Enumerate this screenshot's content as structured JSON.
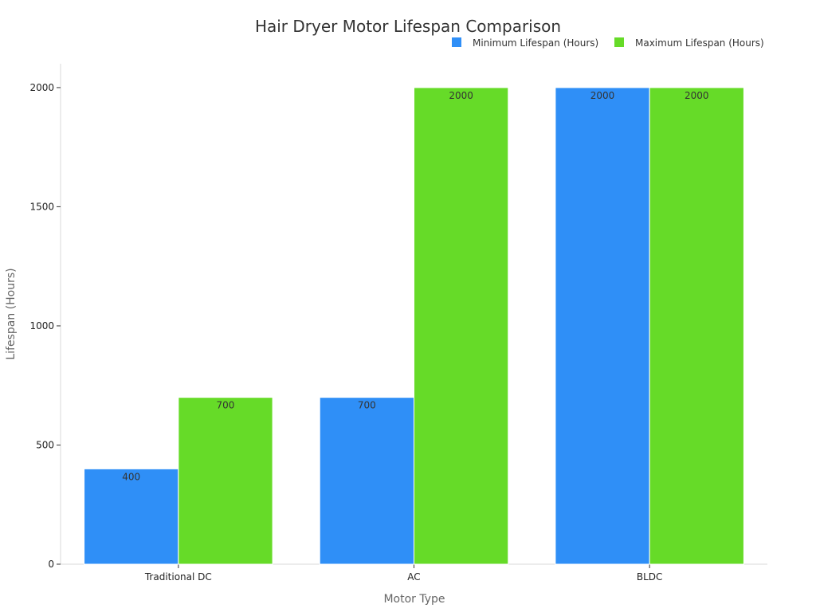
{
  "chart_data": {
    "type": "bar",
    "title": "Hair Dryer Motor Lifespan Comparison",
    "xlabel": "Motor Type",
    "ylabel": "Lifespan (Hours)",
    "categories": [
      "Traditional DC",
      "AC",
      "BLDC"
    ],
    "series": [
      {
        "name": "Minimum Lifespan (Hours)",
        "values": [
          400,
          700,
          2000
        ],
        "color": "#2f8ff7"
      },
      {
        "name": "Maximum Lifespan (Hours)",
        "values": [
          700,
          2000,
          2000
        ],
        "color": "#66db28"
      }
    ],
    "ylim": [
      0,
      2100
    ],
    "yticks": [
      0,
      500,
      1000,
      1500,
      2000
    ],
    "grid": false,
    "legend_position": "top-right",
    "data_labels": true
  }
}
